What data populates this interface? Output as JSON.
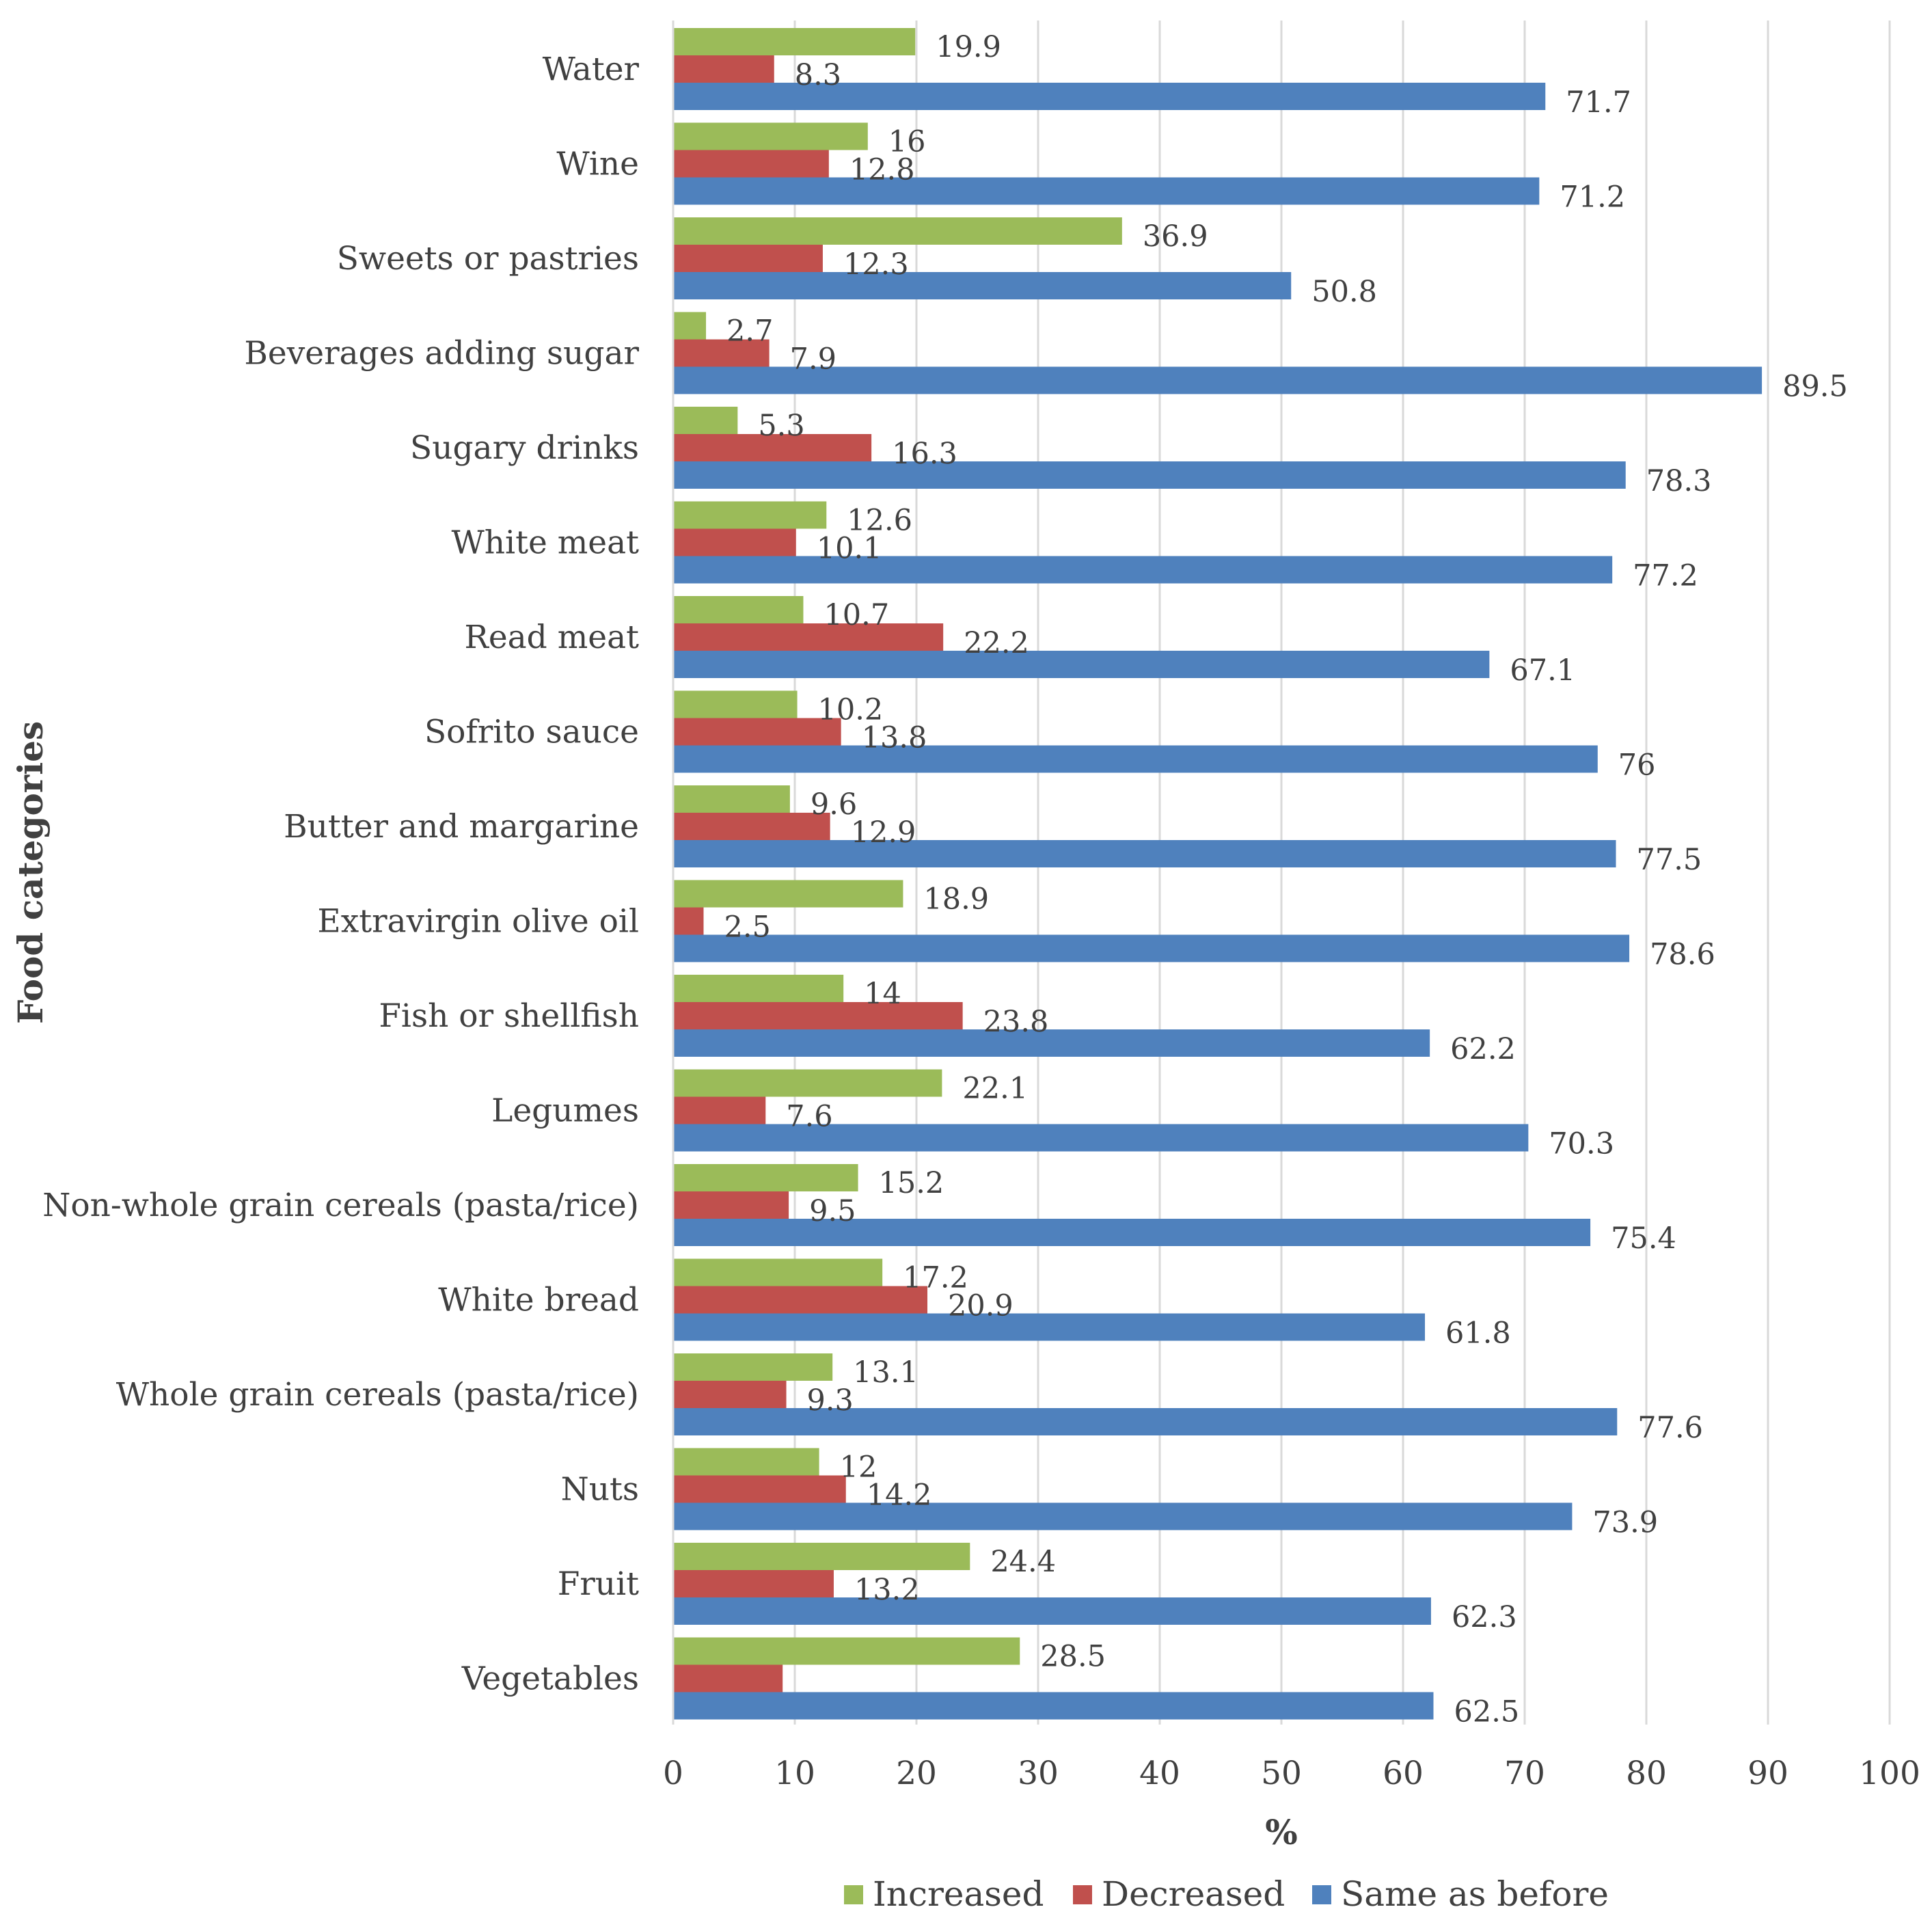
{
  "chart_data": {
    "type": "bar",
    "orientation": "horizontal",
    "title": "",
    "xlabel": "%",
    "ylabel": "Food categories",
    "xlim": [
      0,
      100
    ],
    "xticks": [
      0,
      10,
      20,
      30,
      40,
      50,
      60,
      70,
      80,
      90,
      100
    ],
    "grid": "vertical",
    "legend_position": "bottom",
    "categories": [
      "Water",
      "Wine",
      "Sweets or pastries",
      "Beverages adding sugar",
      "Sugary drinks",
      "White meat",
      "Read meat",
      "Sofrito sauce",
      "Butter and margarine",
      "Extravirgin olive oil",
      "Fish or shellfish",
      "Legumes",
      "Non-whole grain cereals (pasta/rice)",
      "White bread",
      "Whole grain cereals (pasta/rice)",
      "Nuts",
      "Fruit",
      "Vegetables"
    ],
    "series": [
      {
        "name": "Increased",
        "color": "#9bbb59",
        "values": [
          19.9,
          16,
          36.9,
          2.7,
          5.3,
          12.6,
          10.7,
          10.2,
          9.6,
          18.9,
          14,
          22.1,
          15.2,
          17.2,
          13.1,
          12,
          24.4,
          28.5
        ],
        "labels": [
          "19.9",
          "16",
          "36.9",
          "2.7",
          "5.3",
          "12.6",
          "10.7",
          "10.2",
          "9.6",
          "18.9",
          "14",
          "22.1",
          "15.2",
          "17.2",
          "13.1",
          "12",
          "24.4",
          "28.5"
        ]
      },
      {
        "name": "Decreased",
        "color": "#c0504d",
        "values": [
          8.3,
          12.8,
          12.3,
          7.9,
          16.3,
          10.1,
          22.2,
          13.8,
          12.9,
          2.5,
          23.8,
          7.6,
          9.5,
          20.9,
          9.3,
          14.2,
          13.2,
          9.0
        ],
        "labels": [
          "8.3",
          "12.8",
          "12.3",
          "7.9",
          "16.3",
          "10.1",
          "22.2",
          "13.8",
          "12.9",
          "2.5",
          "23.8",
          "7.6",
          "9.5",
          "20.9",
          "9.3",
          "14.2",
          "13.2",
          ""
        ]
      },
      {
        "name": "Same as before",
        "color": "#4f81bd",
        "values": [
          71.7,
          71.2,
          50.8,
          89.5,
          78.3,
          77.2,
          67.1,
          76,
          77.5,
          78.6,
          62.2,
          70.3,
          75.4,
          61.8,
          77.6,
          73.9,
          62.3,
          62.5
        ],
        "labels": [
          "71.7",
          "71.2",
          "50.8",
          "89.5",
          "78.3",
          "77.2",
          "67.1",
          "76",
          "77.5",
          "78.6",
          "62.2",
          "70.3",
          "75.4",
          "61.8",
          "77.6",
          "73.9",
          "62.3",
          "62.5"
        ]
      }
    ]
  }
}
